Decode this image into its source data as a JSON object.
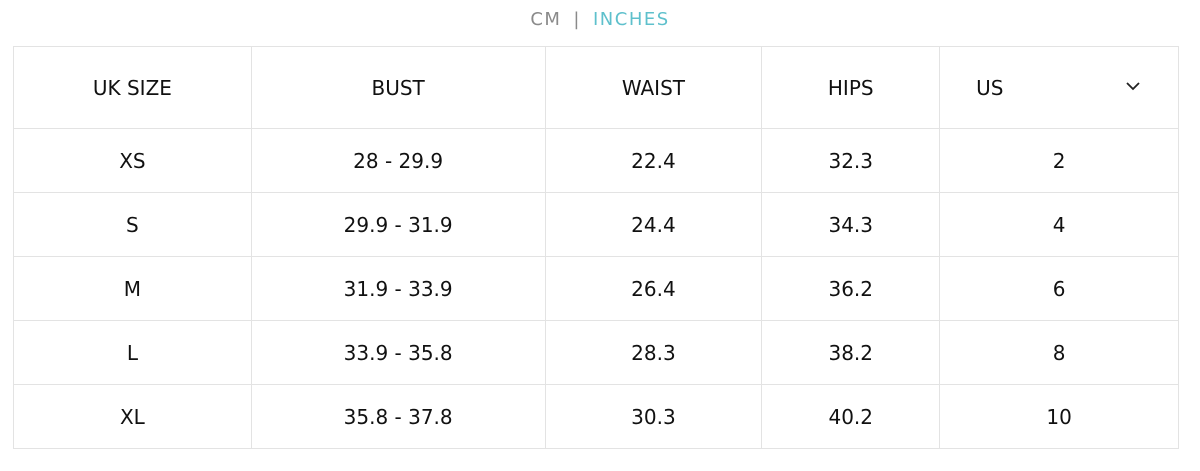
{
  "units": {
    "cm": "CM",
    "separator": "|",
    "inches": "INCHES",
    "selected": "INCHES",
    "active_color": "#5ec0cc"
  },
  "table": {
    "headers": [
      "UK SIZE",
      "BUST",
      "WAIST",
      "HIPS"
    ],
    "region_select": {
      "value": "US",
      "icon": "chevron-down-icon"
    },
    "rows": [
      [
        "XS",
        "28 - 29.9",
        "22.4",
        "32.3",
        "2"
      ],
      [
        "S",
        "29.9 - 31.9",
        "24.4",
        "34.3",
        "4"
      ],
      [
        "M",
        "31.9 - 33.9",
        "26.4",
        "36.2",
        "6"
      ],
      [
        "L",
        "33.9 - 35.8",
        "28.3",
        "38.2",
        "8"
      ],
      [
        "XL",
        "35.8 - 37.8",
        "30.3",
        "40.2",
        "10"
      ]
    ]
  }
}
